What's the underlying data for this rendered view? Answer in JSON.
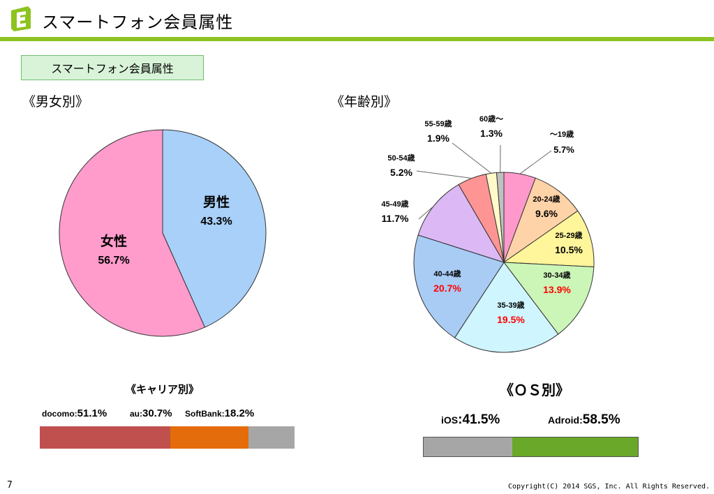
{
  "header": {
    "title": "スマートフォン会員属性"
  },
  "section_label": "スマートフォン会員属性",
  "gender": {
    "title": "《男女別》"
  },
  "age": {
    "title": "《年齢別》"
  },
  "carrier": {
    "title": "《キャリア別》",
    "items": [
      {
        "name": "docomo:",
        "value": "51.1%"
      },
      {
        "name": "au:",
        "value": "30.7%"
      },
      {
        "name": "SoftBank:",
        "value": "18.2%"
      }
    ]
  },
  "os": {
    "title": "《ＯＳ別》",
    "items": [
      {
        "name": "iOS",
        "value": ":41.5%"
      },
      {
        "name": "Adroid:",
        "value": "58.5%"
      }
    ]
  },
  "footer": {
    "page": "7",
    "copyright": "Copyright(C) 2014 SGS, Inc. All Rights Reserved."
  },
  "chart_data": [
    {
      "type": "pie",
      "title": "《男女別》",
      "slices": [
        {
          "label": "男性",
          "value": 43.3,
          "display": "43.3%",
          "color": "#a8d0f8"
        },
        {
          "label": "女性",
          "value": 56.7,
          "display": "56.7%",
          "color": "#ff9ccc"
        }
      ]
    },
    {
      "type": "pie",
      "title": "《年齢別》",
      "slices": [
        {
          "label": "～19歳",
          "value": 5.7,
          "display": "5.7%",
          "color": "#ff99cc"
        },
        {
          "label": "20-24歳",
          "value": 9.6,
          "display": "9.6%",
          "color": "#ffd3a8"
        },
        {
          "label": "25-29歳",
          "value": 10.5,
          "display": "10.5%",
          "color": "#fff59a"
        },
        {
          "label": "30-34歳",
          "value": 13.9,
          "display": "13.9%",
          "color": "#ccf5b8",
          "highlight": true
        },
        {
          "label": "35-39歳",
          "value": 19.5,
          "display": "19.5%",
          "color": "#cff5ff",
          "highlight": true
        },
        {
          "label": "40-44歳",
          "value": 20.7,
          "display": "20.7%",
          "color": "#a9ccf5",
          "highlight": true
        },
        {
          "label": "45-49歳",
          "value": 11.7,
          "display": "11.7%",
          "color": "#dcb8f5"
        },
        {
          "label": "50-54歳",
          "value": 5.2,
          "display": "5.2%",
          "color": "#ff9494"
        },
        {
          "label": "55-59歳",
          "value": 1.9,
          "display": "1.9%",
          "color": "#fffac8"
        },
        {
          "label": "60歳～",
          "value": 1.3,
          "display": "1.3%",
          "color": "#c0c0c0"
        }
      ]
    },
    {
      "type": "bar",
      "title": "《キャリア別》",
      "stacked": true,
      "categories": [
        "docomo",
        "au",
        "SoftBank"
      ],
      "values": [
        51.1,
        30.7,
        18.2
      ],
      "colors": [
        "#c0504d",
        "#e46c0a",
        "#a6a6a6"
      ]
    },
    {
      "type": "bar",
      "title": "《ＯＳ別》",
      "stacked": true,
      "categories": [
        "iOS",
        "Adroid"
      ],
      "values": [
        41.5,
        58.5
      ],
      "colors": [
        "#a6a6a6",
        "#6aa829"
      ]
    }
  ]
}
